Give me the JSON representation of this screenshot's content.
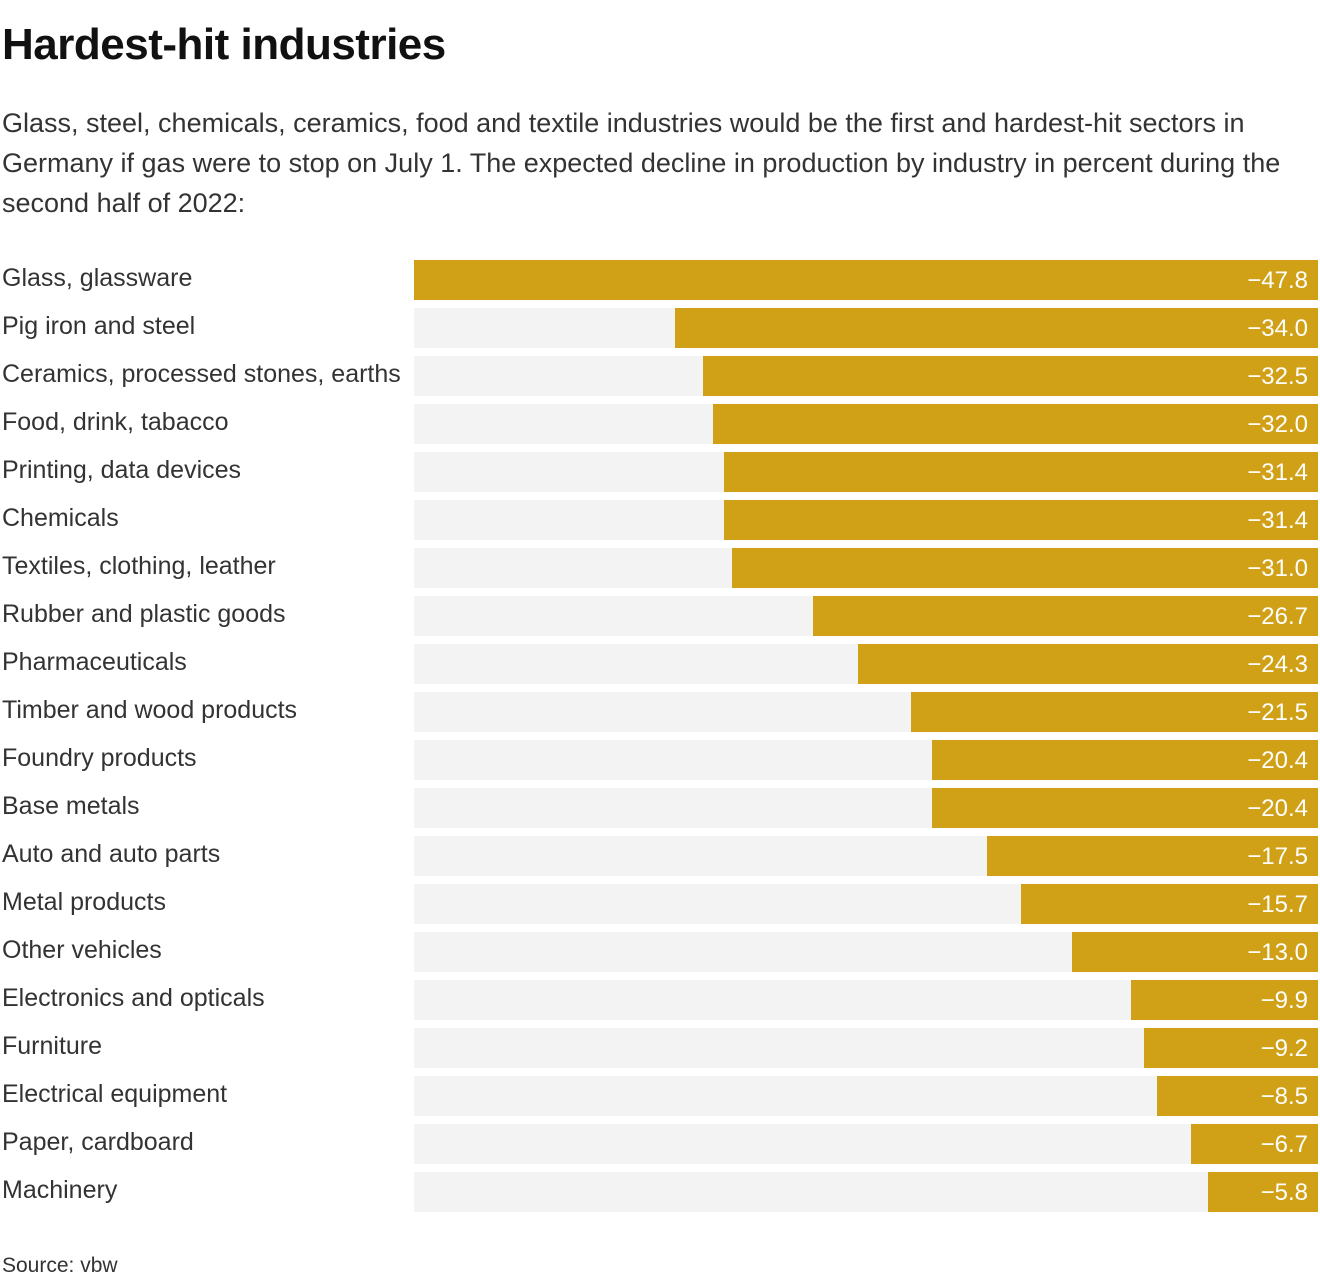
{
  "title": "Hardest-hit industries",
  "subtitle": "Glass, steel, chemicals, ceramics, food and textile industries would be the first and hardest-hit sectors in Germany if gas were to stop on July 1. The expected decline in production by industry in percent during the second half of 2022:",
  "source": "Source: vbw",
  "colors": {
    "bar": "#d0a116",
    "track": "#f3f3f3",
    "value_text": "#ffffff"
  },
  "chart_data": {
    "type": "bar",
    "orientation": "horizontal",
    "title": "Hardest-hit industries",
    "xlabel": "",
    "ylabel": "",
    "xlim": [
      -47.8,
      0
    ],
    "categories": [
      "Glass, glassware",
      "Pig iron and steel",
      "Ceramics, processed stones, earths",
      "Food, drink, tabacco",
      "Printing, data devices",
      "Chemicals",
      "Textiles, clothing, leather",
      "Rubber and plastic goods",
      "Pharmaceuticals",
      "Timber and wood products",
      "Foundry products",
      "Base metals",
      "Auto and auto parts",
      "Metal products",
      "Other vehicles",
      "Electronics and opticals",
      "Furniture",
      "Electrical equipment",
      "Paper, cardboard",
      "Machinery"
    ],
    "values": [
      -47.8,
      -34.0,
      -32.5,
      -32.0,
      -31.4,
      -31.4,
      -31.0,
      -26.7,
      -24.3,
      -21.5,
      -20.4,
      -20.4,
      -17.5,
      -15.7,
      -13.0,
      -9.9,
      -9.2,
      -8.5,
      -6.7,
      -5.8
    ],
    "value_labels": [
      "−47.8",
      "−34.0",
      "−32.5",
      "−32.0",
      "−31.4",
      "−31.4",
      "−31.0",
      "−26.7",
      "−24.3",
      "−21.5",
      "−20.4",
      "−20.4",
      "−17.5",
      "−15.7",
      "−13.0",
      "−9.9",
      "−9.2",
      "−8.5",
      "−6.7",
      "−5.8"
    ]
  }
}
